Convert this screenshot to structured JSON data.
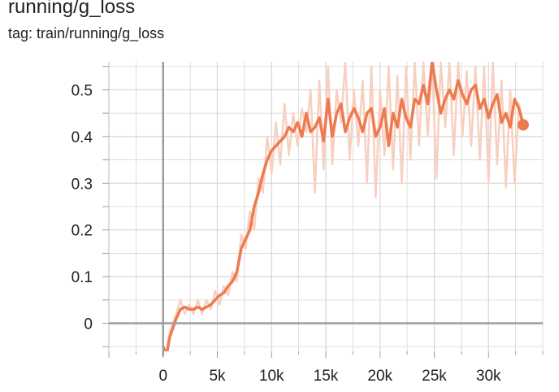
{
  "header": {
    "title": "running/g_loss",
    "subtitle": "tag: train/running/g_loss"
  },
  "colors": {
    "series": "#ee7b4f",
    "series_raw": "#f8d0c0",
    "grid": "#d6d6d6",
    "zero_axis": "#9e9e9e"
  },
  "chart_data": {
    "type": "line",
    "title": "running/g_loss",
    "xlabel": "",
    "ylabel": "",
    "xlim": [
      -5000,
      35000
    ],
    "ylim": [
      -0.06,
      0.56
    ],
    "grid": true,
    "x_ticks": [
      0,
      5000,
      10000,
      15000,
      20000,
      25000,
      30000
    ],
    "x_tick_labels": [
      "0",
      "5k",
      "10k",
      "15k",
      "20k",
      "25k",
      "30k"
    ],
    "y_ticks": [
      0,
      0.1,
      0.2,
      0.3,
      0.4,
      0.5
    ],
    "y_tick_labels": [
      "0",
      "0.1",
      "0.2",
      "0.3",
      "0.4",
      "0.5"
    ],
    "series": [
      {
        "smoothed": true,
        "x": [
          0,
          300,
          600,
          900,
          1200,
          1600,
          2000,
          2400,
          2800,
          3200,
          3600,
          4000,
          4400,
          4800,
          5200,
          5600,
          6000,
          6400,
          6800,
          7200,
          7600,
          8000,
          8400,
          8800,
          9200,
          9600,
          10000,
          10400,
          10800,
          11200,
          11600,
          12000,
          12400,
          12800,
          13200,
          13600,
          14000,
          14400,
          14800,
          15200,
          15600,
          16000,
          16400,
          16800,
          17200,
          17600,
          18000,
          18400,
          18800,
          19200,
          19600,
          20000,
          20400,
          20800,
          21200,
          21600,
          22000,
          22400,
          22800,
          23200,
          23600,
          24000,
          24400,
          24800,
          25200,
          25600,
          26000,
          26400,
          26800,
          27200,
          27600,
          28000,
          28400,
          28800,
          29200,
          29600,
          30000,
          30400,
          30800,
          31200,
          31600,
          32000,
          32400,
          32800,
          33200
        ],
        "y": [
          -0.05,
          -0.07,
          -0.03,
          -0.01,
          0.01,
          0.03,
          0.035,
          0.03,
          0.03,
          0.035,
          0.03,
          0.035,
          0.04,
          0.05,
          0.06,
          0.065,
          0.08,
          0.09,
          0.11,
          0.16,
          0.18,
          0.2,
          0.25,
          0.28,
          0.32,
          0.35,
          0.37,
          0.38,
          0.39,
          0.4,
          0.42,
          0.41,
          0.43,
          0.4,
          0.45,
          0.41,
          0.42,
          0.44,
          0.39,
          0.48,
          0.4,
          0.45,
          0.47,
          0.41,
          0.44,
          0.46,
          0.44,
          0.41,
          0.45,
          0.46,
          0.4,
          0.42,
          0.46,
          0.38,
          0.45,
          0.42,
          0.48,
          0.44,
          0.42,
          0.48,
          0.47,
          0.51,
          0.47,
          0.56,
          0.5,
          0.45,
          0.48,
          0.5,
          0.48,
          0.52,
          0.49,
          0.47,
          0.5,
          0.51,
          0.46,
          0.48,
          0.44,
          0.47,
          0.49,
          0.43,
          0.45,
          0.42,
          0.48,
          0.46,
          0.425
        ]
      },
      {
        "smoothed": false,
        "x": [
          0,
          300,
          600,
          900,
          1200,
          1600,
          2000,
          2400,
          2800,
          3200,
          3600,
          4000,
          4400,
          4800,
          5200,
          5600,
          6000,
          6400,
          6800,
          7200,
          7600,
          8000,
          8400,
          8800,
          9200,
          9600,
          10000,
          10400,
          10800,
          11200,
          11600,
          12000,
          12400,
          12800,
          13200,
          13600,
          14000,
          14400,
          14800,
          15200,
          15600,
          16000,
          16400,
          16800,
          17200,
          17600,
          18000,
          18400,
          18800,
          19200,
          19600,
          20000,
          20400,
          20800,
          21200,
          21600,
          22000,
          22400,
          22800,
          23200,
          23600,
          24000,
          24400,
          24800,
          25200,
          25600,
          26000,
          26400,
          26800,
          27200,
          27600,
          28000,
          28400,
          28800,
          29200,
          29600,
          30000,
          30400,
          30800,
          31200,
          31600,
          32000,
          32400,
          32800,
          33200
        ],
        "y": [
          -0.05,
          -0.06,
          -0.02,
          0.0,
          0.02,
          0.05,
          0.02,
          0.04,
          0.02,
          0.05,
          0.02,
          0.05,
          0.03,
          0.07,
          0.04,
          0.08,
          0.06,
          0.11,
          0.09,
          0.19,
          0.16,
          0.24,
          0.2,
          0.31,
          0.28,
          0.4,
          0.32,
          0.43,
          0.34,
          0.47,
          0.36,
          0.45,
          0.38,
          0.46,
          0.41,
          0.5,
          0.28,
          0.52,
          0.33,
          0.55,
          0.34,
          0.5,
          0.43,
          0.56,
          0.35,
          0.5,
          0.38,
          0.52,
          0.3,
          0.55,
          0.27,
          0.5,
          0.36,
          0.55,
          0.33,
          0.53,
          0.3,
          0.55,
          0.35,
          0.56,
          0.38,
          0.56,
          0.4,
          0.56,
          0.31,
          0.56,
          0.42,
          0.56,
          0.36,
          0.56,
          0.4,
          0.54,
          0.38,
          0.55,
          0.35,
          0.55,
          0.3,
          0.56,
          0.34,
          0.52,
          0.29,
          0.5,
          0.3,
          0.47,
          0.43
        ]
      }
    ],
    "last_point": {
      "x": 33200,
      "y": 0.425
    }
  }
}
